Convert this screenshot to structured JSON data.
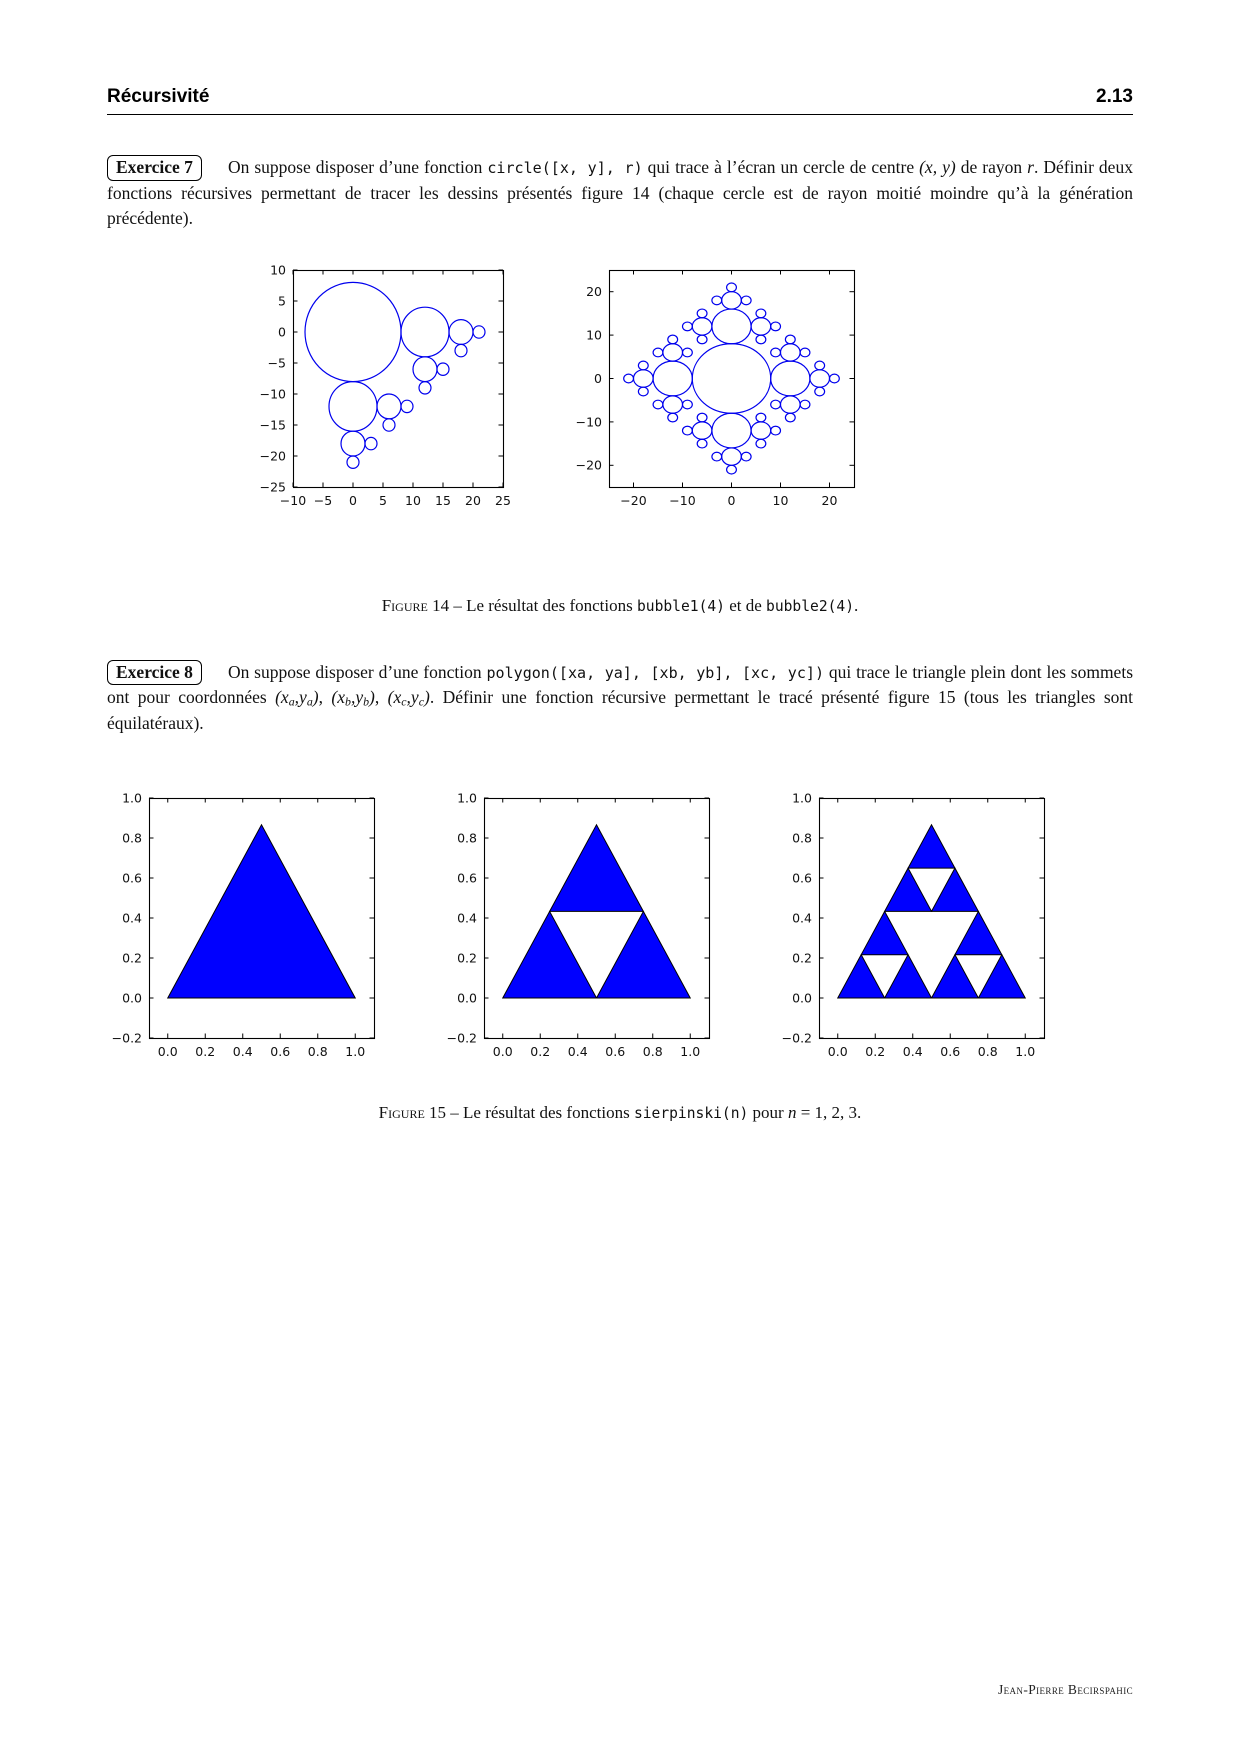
{
  "page": {
    "header": {
      "title": "Récursivité",
      "page_number": "2.13"
    },
    "footer": {
      "author": "Jean-Pierre Becirspahic"
    }
  },
  "exercises": [
    {
      "label": "Exercice 7",
      "runs": [
        {
          "t": "On suppose disposer d’une fonction ",
          "s": ""
        },
        {
          "t": "circle([x, y], r)",
          "s": "code"
        },
        {
          "t": " qui trace à l’écran un cercle de centre ",
          "s": ""
        },
        {
          "t": "(x, y)",
          "s": "i"
        },
        {
          "t": " de rayon ",
          "s": ""
        },
        {
          "t": "r",
          "s": "i"
        },
        {
          "t": ". Définir deux fonctions récursives permettant de tracer les dessins présentés figure 14 (chaque cercle est de rayon moitié moindre qu’à la génération précédente).",
          "s": ""
        }
      ]
    },
    {
      "label": "Exercice 8",
      "runs": [
        {
          "t": "On suppose disposer d’une fonction ",
          "s": ""
        },
        {
          "t": "polygon([xa, ya], [xb, yb], [xc, yc])",
          "s": "code"
        },
        {
          "t": " qui trace le triangle plein dont les sommets ont pour coordonnées ",
          "s": ""
        },
        {
          "t": "(x",
          "s": "i"
        },
        {
          "t": "a",
          "s": "sub"
        },
        {
          "t": ",y",
          "s": "i"
        },
        {
          "t": "a",
          "s": "sub"
        },
        {
          "t": ")",
          "s": "i"
        },
        {
          "t": ", ",
          "s": ""
        },
        {
          "t": "(x",
          "s": "i"
        },
        {
          "t": "b",
          "s": "sub"
        },
        {
          "t": ",y",
          "s": "i"
        },
        {
          "t": "b",
          "s": "sub"
        },
        {
          "t": ")",
          "s": "i"
        },
        {
          "t": ", ",
          "s": ""
        },
        {
          "t": "(x",
          "s": "i"
        },
        {
          "t": "c",
          "s": "sub"
        },
        {
          "t": ",y",
          "s": "i"
        },
        {
          "t": "c",
          "s": "sub"
        },
        {
          "t": ")",
          "s": "i"
        },
        {
          "t": ". Définir une fonction récursive permettant le tracé présenté figure 15 (tous les triangles sont équilatéraux).",
          "s": ""
        }
      ]
    }
  ],
  "figures": [
    {
      "caption_runs": [
        {
          "t": "Figure",
          "s": "sc"
        },
        {
          "t": " 14 – Le résultat des fonctions ",
          "s": ""
        },
        {
          "t": "bubble1(4)",
          "s": "code"
        },
        {
          "t": " et de ",
          "s": ""
        },
        {
          "t": "bubble2(4)",
          "s": "code"
        },
        {
          "t": ".",
          "s": ""
        }
      ]
    },
    {
      "caption_runs": [
        {
          "t": "Figure",
          "s": "sc"
        },
        {
          "t": " 15 – Le résultat des fonctions ",
          "s": ""
        },
        {
          "t": "sierpinski(n)",
          "s": "code"
        },
        {
          "t": " pour ",
          "s": ""
        },
        {
          "t": "n",
          "s": "i"
        },
        {
          "t": " = 1, 2, 3.",
          "s": ""
        }
      ]
    }
  ],
  "chart_data": [
    {
      "id": "bubble1",
      "name": "bubble1(4)",
      "type": "fractal-circles",
      "root": {
        "x": 0,
        "y": 0,
        "r": 8
      },
      "depth": 4,
      "child_ratio": 0.5,
      "tangent_offset_factor": 1.5,
      "child_directions": [
        "right",
        "down"
      ],
      "xlim": [
        -10,
        25
      ],
      "ylim": [
        -25,
        10
      ],
      "xticks": [
        -10,
        -5,
        0,
        5,
        10,
        15,
        20,
        25
      ],
      "xtick_labels": [
        "−10",
        "−5",
        "0",
        "5",
        "10",
        "15",
        "20",
        "25"
      ],
      "yticks": [
        10,
        5,
        0,
        -5,
        -10,
        -15,
        -20,
        -25
      ],
      "ytick_labels": [
        "10",
        "5",
        "0",
        "−5",
        "−10",
        "−15",
        "−20",
        "−25"
      ],
      "line_color": "#0000ee",
      "grid": false
    },
    {
      "id": "bubble2",
      "name": "bubble2(4)",
      "type": "fractal-circles",
      "root": {
        "x": 0,
        "y": 0,
        "r": 8
      },
      "depth": 4,
      "child_ratio": 0.5,
      "tangent_offset_factor": 1.5,
      "child_directions": "all-except-back",
      "xlim": [
        -25,
        25
      ],
      "ylim": [
        -25,
        25
      ],
      "xticks": [
        -20,
        -10,
        0,
        10,
        20
      ],
      "xtick_labels": [
        "−20",
        "−10",
        "0",
        "10",
        "20"
      ],
      "yticks": [
        20,
        10,
        0,
        -10,
        -20
      ],
      "ytick_labels": [
        "20",
        "10",
        "0",
        "−10",
        "−20"
      ],
      "line_color": "#0000ee",
      "grid": false
    },
    {
      "id": "sierpinski1",
      "name": "sierpinski(1)",
      "type": "sierpinski",
      "n": 1,
      "triangle": [
        [
          0,
          0
        ],
        [
          1,
          0
        ],
        [
          0.5,
          0.8660254
        ]
      ],
      "xlim": [
        -0.1,
        1.1
      ],
      "ylim": [
        -0.2,
        1.0
      ],
      "xticks": [
        0,
        0.2,
        0.4,
        0.6,
        0.8,
        1.0
      ],
      "xtick_labels": [
        "0.0",
        "0.2",
        "0.4",
        "0.6",
        "0.8",
        "1.0"
      ],
      "yticks": [
        1.0,
        0.8,
        0.6,
        0.4,
        0.2,
        0,
        -0.2
      ],
      "ytick_labels": [
        "1.0",
        "0.8",
        "0.6",
        "0.4",
        "0.2",
        "0.0",
        "−0.2"
      ],
      "fill_color": "#0000ff",
      "edge_color": "#000000",
      "grid": false
    },
    {
      "id": "sierpinski2",
      "name": "sierpinski(2)",
      "type": "sierpinski",
      "n": 2,
      "triangle": [
        [
          0,
          0
        ],
        [
          1,
          0
        ],
        [
          0.5,
          0.8660254
        ]
      ],
      "xlim": [
        -0.1,
        1.1
      ],
      "ylim": [
        -0.2,
        1.0
      ],
      "xticks": [
        0,
        0.2,
        0.4,
        0.6,
        0.8,
        1.0
      ],
      "xtick_labels": [
        "0.0",
        "0.2",
        "0.4",
        "0.6",
        "0.8",
        "1.0"
      ],
      "yticks": [
        1.0,
        0.8,
        0.6,
        0.4,
        0.2,
        0,
        -0.2
      ],
      "ytick_labels": [
        "1.0",
        "0.8",
        "0.6",
        "0.4",
        "0.2",
        "0.0",
        "−0.2"
      ],
      "fill_color": "#0000ff",
      "edge_color": "#000000",
      "grid": false
    },
    {
      "id": "sierpinski3",
      "name": "sierpinski(3)",
      "type": "sierpinski",
      "n": 3,
      "triangle": [
        [
          0,
          0
        ],
        [
          1,
          0
        ],
        [
          0.5,
          0.8660254
        ]
      ],
      "xlim": [
        -0.1,
        1.1
      ],
      "ylim": [
        -0.2,
        1.0
      ],
      "xticks": [
        0,
        0.2,
        0.4,
        0.6,
        0.8,
        1.0
      ],
      "xtick_labels": [
        "0.0",
        "0.2",
        "0.4",
        "0.6",
        "0.8",
        "1.0"
      ],
      "yticks": [
        1.0,
        0.8,
        0.6,
        0.4,
        0.2,
        0,
        -0.2
      ],
      "ytick_labels": [
        "1.0",
        "0.8",
        "0.6",
        "0.4",
        "0.2",
        "0.0",
        "−0.2"
      ],
      "fill_color": "#0000ff",
      "edge_color": "#000000",
      "grid": false
    }
  ]
}
